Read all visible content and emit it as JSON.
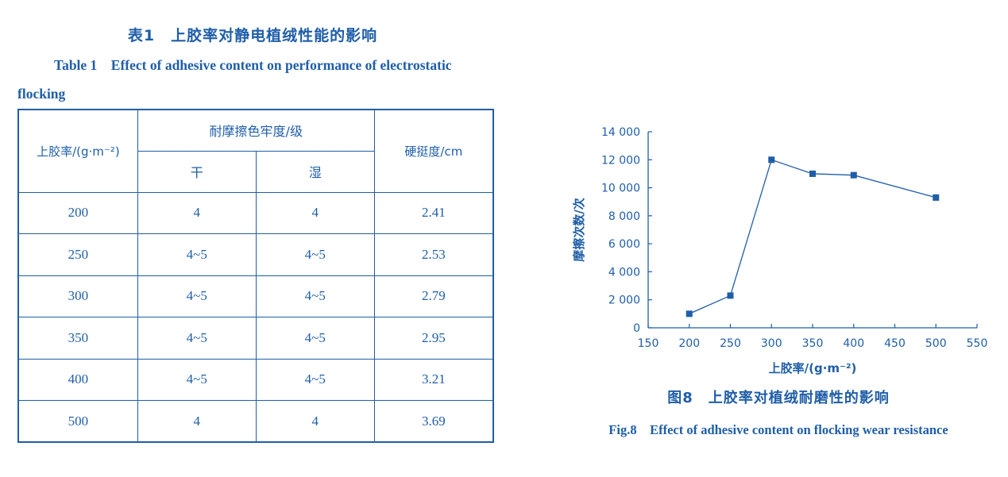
{
  "table": {
    "title_cn": "表1　上胶率对静电植绒性能的影响",
    "title_en": "Table 1　Effect of adhesive content on performance of electrostatic flocking",
    "header": {
      "rate": "上胶率/(g·m⁻²)",
      "fastness": "耐摩擦色牢度/级",
      "dry": "干",
      "wet": "湿",
      "stiffness": "硬挺度/cm"
    },
    "rows": [
      [
        "200",
        "4",
        "4",
        "2.41"
      ],
      [
        "250",
        "4~5",
        "4~5",
        "2.53"
      ],
      [
        "300",
        "4~5",
        "4~5",
        "2.79"
      ],
      [
        "350",
        "4~5",
        "4~5",
        "2.95"
      ],
      [
        "400",
        "4~5",
        "4~5",
        "3.21"
      ],
      [
        "500",
        "4",
        "4",
        "3.69"
      ]
    ]
  },
  "figure": {
    "caption_cn": "图8　上胶率对植绒耐磨性的影响",
    "caption_en": "Fig.8　Effect of adhesive content on flocking wear resistance"
  },
  "colors": {
    "primary": "#1f5ea8"
  },
  "chart_data": {
    "type": "line",
    "x": [
      200,
      250,
      300,
      350,
      400,
      500
    ],
    "series": [
      {
        "values": [
          1000,
          2300,
          12000,
          11000,
          10900,
          9300
        ]
      }
    ],
    "xlabel": "上胶率/(g·m⁻²)",
    "ylabel": "摩擦次数/次",
    "xlim": [
      150,
      550
    ],
    "ylim": [
      0,
      14000
    ],
    "xticks": [
      "150",
      "200",
      "250",
      "300",
      "350",
      "400",
      "450",
      "500",
      "550"
    ],
    "yticks": [
      "0",
      "2 000",
      "4 000",
      "6 000",
      "8 000",
      "10 000",
      "12 000",
      "14 000"
    ],
    "grid": false,
    "marker": "square"
  }
}
